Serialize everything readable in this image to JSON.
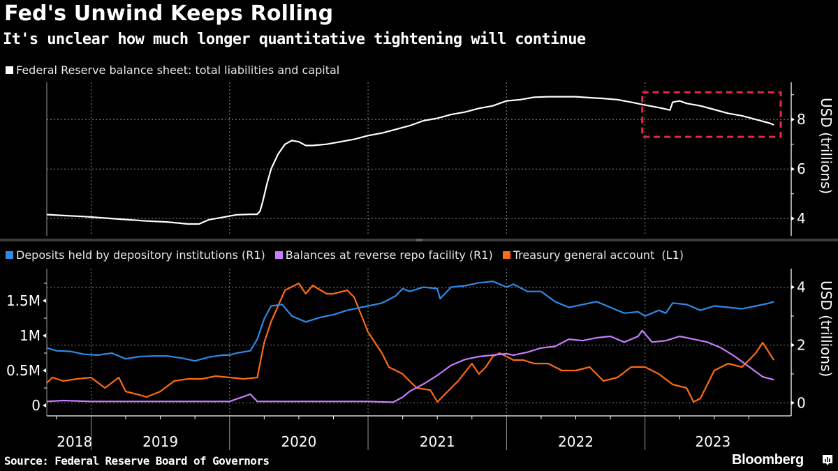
{
  "header": {
    "title": "Fed's Unwind Keeps Rolling",
    "subtitle": "It's unclear how much longer quantitative tightening will continue"
  },
  "footer": {
    "source": "Source: Federal Reserve Board of Governors",
    "brand": "Bloomberg"
  },
  "colors": {
    "background": "#000000",
    "balance_sheet": "#ffffff",
    "deposits": "#2f8ae6",
    "reverse_repo": "#c77dff",
    "tga": "#ff6a13",
    "highlight_box": "#e8264a",
    "grid": "#8a8a8a"
  },
  "chart_data": [
    {
      "type": "line",
      "title": "Federal Reserve balance sheet: total liabilities and capital",
      "legend": [
        "Federal Reserve balance sheet: total liabilities and capital"
      ],
      "legend_placement": "top-left",
      "xlabel": "",
      "ylabel": "USD (trillions)",
      "yaxis_side": "right",
      "yticks": [
        4,
        6,
        8
      ],
      "ytick_labels": [
        "4",
        "6",
        "8"
      ],
      "ylim": [
        3.3,
        9.5
      ],
      "xlim": [
        2018.68,
        2023.98
      ],
      "grid": true,
      "annotation": "dashed red rectangle highlighting 2023 decline",
      "highlight_range": {
        "x": [
          2022.98,
          2023.98
        ],
        "y": [
          7.3,
          9.1
        ]
      },
      "series": [
        {
          "name": "Federal Reserve balance sheet: total liabilities and capital",
          "x": [
            2018.68,
            2018.8,
            2018.95,
            2019.1,
            2019.25,
            2019.4,
            2019.55,
            2019.7,
            2019.78,
            2019.85,
            2019.95,
            2020.05,
            2020.15,
            2020.2,
            2020.22,
            2020.24,
            2020.27,
            2020.3,
            2020.35,
            2020.4,
            2020.45,
            2020.5,
            2020.55,
            2020.6,
            2020.7,
            2020.8,
            2020.9,
            2021.0,
            2021.1,
            2021.2,
            2021.3,
            2021.4,
            2021.5,
            2021.6,
            2021.7,
            2021.8,
            2021.9,
            2022.0,
            2022.1,
            2022.2,
            2022.3,
            2022.4,
            2022.5,
            2022.6,
            2022.7,
            2022.8,
            2022.9,
            2023.0,
            2023.1,
            2023.18,
            2023.2,
            2023.25,
            2023.3,
            2023.4,
            2023.5,
            2023.6,
            2023.7,
            2023.8,
            2023.9,
            2023.93
          ],
          "values": [
            4.16,
            4.12,
            4.08,
            4.02,
            3.96,
            3.9,
            3.86,
            3.78,
            3.78,
            3.95,
            4.05,
            4.15,
            4.17,
            4.17,
            4.3,
            4.7,
            5.4,
            6.0,
            6.6,
            7.0,
            7.15,
            7.1,
            6.95,
            6.95,
            7.0,
            7.1,
            7.2,
            7.35,
            7.45,
            7.6,
            7.75,
            7.95,
            8.05,
            8.2,
            8.3,
            8.45,
            8.55,
            8.75,
            8.8,
            8.9,
            8.92,
            8.92,
            8.92,
            8.88,
            8.85,
            8.8,
            8.7,
            8.58,
            8.48,
            8.38,
            8.7,
            8.75,
            8.65,
            8.55,
            8.4,
            8.25,
            8.15,
            8.0,
            7.85,
            7.78
          ]
        }
      ]
    },
    {
      "type": "line",
      "legend": [
        "Deposits held by depository institutions (R1)",
        "Balances at reverse repo facility (R1)",
        "Treasury general account  (L1)"
      ],
      "legend_placement": "top-left",
      "xlabel": "",
      "ylabel_right": "USD (trillions)",
      "yleft_ticks": [
        0,
        0.5,
        1,
        1.5
      ],
      "yleft_tick_labels": [
        "0",
        "0.5M",
        "1M",
        "1.5M"
      ],
      "yleft_lim": [
        -0.15,
        1.96
      ],
      "yright_ticks": [
        0,
        2,
        4
      ],
      "yright_tick_labels": [
        "0",
        "2",
        "4"
      ],
      "yright_lim": [
        -0.45,
        4.64
      ],
      "xtick_labels": [
        "2018",
        "2019",
        "2020",
        "2021",
        "2022",
        "2023"
      ],
      "xlim": [
        2018.68,
        2023.98
      ],
      "grid": true,
      "series": [
        {
          "name": "Deposits held by depository institutions (R1)",
          "axis": "right",
          "x": [
            2018.68,
            2018.75,
            2018.85,
            2018.95,
            2019.05,
            2019.15,
            2019.25,
            2019.35,
            2019.45,
            2019.55,
            2019.65,
            2019.75,
            2019.85,
            2019.95,
            2020.0,
            2020.05,
            2020.15,
            2020.2,
            2020.25,
            2020.3,
            2020.38,
            2020.45,
            2020.55,
            2020.65,
            2020.75,
            2020.85,
            2020.95,
            2021.0,
            2021.1,
            2021.2,
            2021.25,
            2021.3,
            2021.4,
            2021.5,
            2021.52,
            2021.6,
            2021.7,
            2021.8,
            2021.9,
            2021.95,
            2022.0,
            2022.05,
            2022.15,
            2022.25,
            2022.35,
            2022.45,
            2022.55,
            2022.65,
            2022.75,
            2022.85,
            2022.95,
            2023.0,
            2023.1,
            2023.15,
            2023.2,
            2023.3,
            2023.4,
            2023.5,
            2023.6,
            2023.7,
            2023.8,
            2023.9,
            2023.93
          ],
          "values": [
            1.9,
            1.8,
            1.78,
            1.68,
            1.65,
            1.72,
            1.52,
            1.6,
            1.62,
            1.62,
            1.55,
            1.45,
            1.58,
            1.65,
            1.65,
            1.72,
            1.8,
            2.2,
            2.9,
            3.35,
            3.4,
            3.0,
            2.8,
            2.95,
            3.05,
            3.2,
            3.3,
            3.35,
            3.45,
            3.7,
            3.95,
            3.85,
            4.0,
            3.95,
            3.6,
            4.0,
            4.05,
            4.15,
            4.2,
            4.1,
            4.0,
            4.1,
            3.85,
            3.85,
            3.5,
            3.3,
            3.4,
            3.5,
            3.3,
            3.1,
            3.15,
            3.0,
            3.2,
            3.1,
            3.45,
            3.4,
            3.2,
            3.35,
            3.3,
            3.25,
            3.35,
            3.45,
            3.5
          ]
        },
        {
          "name": "Balances at reverse repo facility (R1)",
          "axis": "right",
          "x": [
            2018.68,
            2018.8,
            2019.0,
            2019.5,
            2020.0,
            2020.15,
            2020.2,
            2020.25,
            2020.5,
            2021.0,
            2021.18,
            2021.25,
            2021.3,
            2021.4,
            2021.5,
            2021.6,
            2021.7,
            2021.8,
            2021.9,
            2022.0,
            2022.05,
            2022.15,
            2022.25,
            2022.35,
            2022.45,
            2022.55,
            2022.65,
            2022.75,
            2022.85,
            2022.95,
            2022.98,
            2023.05,
            2023.15,
            2023.25,
            2023.35,
            2023.45,
            2023.55,
            2023.65,
            2023.75,
            2023.85,
            2023.93
          ],
          "values": [
            0.05,
            0.08,
            0.05,
            0.05,
            0.05,
            0.3,
            0.05,
            0.05,
            0.05,
            0.05,
            0.02,
            0.2,
            0.4,
            0.65,
            0.95,
            1.3,
            1.5,
            1.6,
            1.65,
            1.7,
            1.65,
            1.75,
            1.9,
            1.95,
            2.2,
            2.15,
            2.25,
            2.3,
            2.1,
            2.3,
            2.5,
            2.1,
            2.15,
            2.3,
            2.2,
            2.1,
            1.9,
            1.6,
            1.25,
            0.9,
            0.8
          ]
        },
        {
          "name": "Treasury general account  (L1)",
          "axis": "left",
          "x": [
            2018.68,
            2018.72,
            2018.8,
            2018.9,
            2019.0,
            2019.1,
            2019.2,
            2019.25,
            2019.35,
            2019.4,
            2019.5,
            2019.6,
            2019.7,
            2019.8,
            2019.9,
            2020.0,
            2020.1,
            2020.2,
            2020.25,
            2020.3,
            2020.4,
            2020.5,
            2020.55,
            2020.6,
            2020.7,
            2020.75,
            2020.85,
            2020.9,
            2021.0,
            2021.1,
            2021.15,
            2021.2,
            2021.25,
            2021.35,
            2021.45,
            2021.5,
            2021.55,
            2021.65,
            2021.75,
            2021.8,
            2021.85,
            2021.9,
            2021.95,
            2022.0,
            2022.05,
            2022.12,
            2022.2,
            2022.3,
            2022.4,
            2022.5,
            2022.6,
            2022.7,
            2022.8,
            2022.9,
            2023.0,
            2023.1,
            2023.2,
            2023.3,
            2023.35,
            2023.4,
            2023.5,
            2023.6,
            2023.7,
            2023.8,
            2023.85,
            2023.93
          ],
          "values": [
            0.32,
            0.4,
            0.35,
            0.38,
            0.4,
            0.25,
            0.4,
            0.2,
            0.15,
            0.12,
            0.2,
            0.35,
            0.38,
            0.38,
            0.42,
            0.4,
            0.38,
            0.4,
            0.9,
            1.2,
            1.65,
            1.75,
            1.6,
            1.72,
            1.6,
            1.6,
            1.65,
            1.55,
            1.05,
            0.75,
            0.55,
            0.5,
            0.45,
            0.25,
            0.22,
            0.05,
            0.15,
            0.35,
            0.6,
            0.45,
            0.55,
            0.7,
            0.75,
            0.7,
            0.65,
            0.65,
            0.6,
            0.6,
            0.5,
            0.5,
            0.55,
            0.35,
            0.4,
            0.55,
            0.55,
            0.45,
            0.3,
            0.25,
            0.05,
            0.1,
            0.5,
            0.6,
            0.55,
            0.75,
            0.9,
            0.65
          ]
        }
      ]
    }
  ]
}
